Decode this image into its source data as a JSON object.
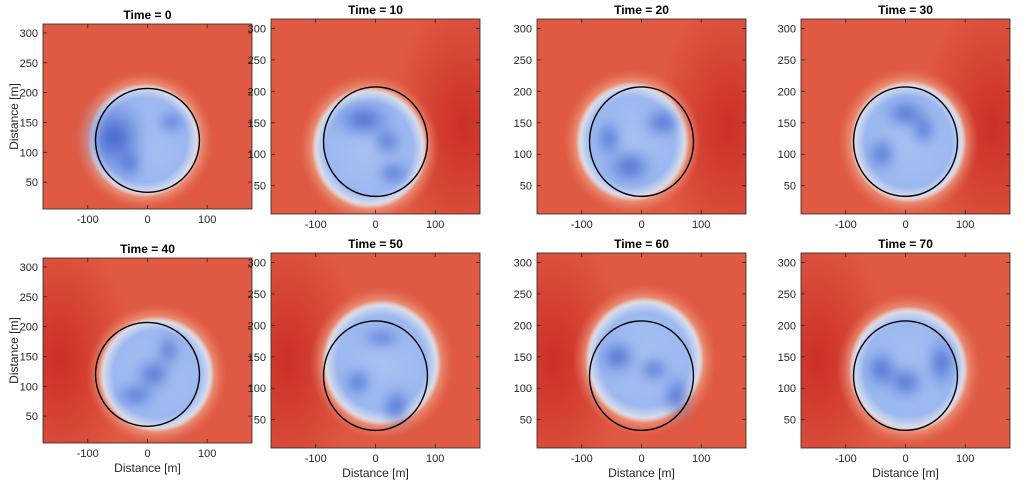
{
  "chart_data": {
    "type": "heatmap",
    "figure_layout": {
      "rows": 2,
      "cols": 4
    },
    "panels": [
      {
        "title": "Time = 0",
        "xlabel": "",
        "ylabel": "Distance [m]",
        "blobs": [
          [
            -55,
            125,
            60,
            70
          ],
          [
            40,
            150,
            28,
            18
          ],
          [
            -30,
            80,
            22,
            30
          ]
        ],
        "blob_center": [
          -5,
          120
        ],
        "blob_radius": 90,
        "hot_side": "none"
      },
      {
        "title": "Time = 10",
        "xlabel": "",
        "ylabel": "",
        "blobs": [
          [
            -20,
            155,
            55,
            30
          ],
          [
            20,
            120,
            25,
            25
          ],
          [
            30,
            70,
            30,
            20
          ]
        ],
        "blob_center": [
          -10,
          110
        ],
        "blob_radius": 92,
        "hot_side": "right"
      },
      {
        "title": "Time = 20",
        "xlabel": "",
        "ylabel": "",
        "blobs": [
          [
            -55,
            125,
            22,
            35
          ],
          [
            -20,
            80,
            45,
            30
          ],
          [
            35,
            150,
            35,
            25
          ]
        ],
        "blob_center": [
          -15,
          120
        ],
        "blob_radius": 90,
        "hot_side": "right"
      },
      {
        "title": "Time = 30",
        "xlabel": "",
        "ylabel": "",
        "blobs": [
          [
            -40,
            100,
            25,
            30
          ],
          [
            30,
            140,
            22,
            30
          ],
          [
            0,
            165,
            40,
            25
          ]
        ],
        "blob_center": [
          5,
          120
        ],
        "blob_radius": 92,
        "hot_side": "right"
      },
      {
        "title": "Time = 40",
        "xlabel": "Distance [m]",
        "ylabel": "Distance [m]",
        "blobs": [
          [
            -20,
            85,
            40,
            20
          ],
          [
            35,
            160,
            20,
            30
          ],
          [
            10,
            120,
            35,
            30
          ]
        ],
        "blob_center": [
          15,
          120
        ],
        "blob_radius": 92,
        "hot_side": "left"
      },
      {
        "title": "Time = 50",
        "xlabel": "Distance [m]",
        "ylabel": "",
        "blobs": [
          [
            35,
            70,
            25,
            35
          ],
          [
            -30,
            110,
            25,
            25
          ],
          [
            10,
            180,
            40,
            15
          ]
        ],
        "blob_center": [
          10,
          140
        ],
        "blob_radius": 95,
        "hot_side": "left"
      },
      {
        "title": "Time = 60",
        "xlabel": "Distance [m]",
        "ylabel": "",
        "blobs": [
          [
            60,
            85,
            25,
            40
          ],
          [
            -40,
            150,
            35,
            30
          ],
          [
            20,
            130,
            30,
            20
          ]
        ],
        "blob_center": [
          5,
          145
        ],
        "blob_radius": 95,
        "hot_side": "left"
      },
      {
        "title": "Time = 70",
        "xlabel": "Distance [m]",
        "ylabel": "",
        "blobs": [
          [
            60,
            140,
            25,
            45
          ],
          [
            -40,
            130,
            30,
            35
          ],
          [
            0,
            110,
            35,
            30
          ]
        ],
        "blob_center": [
          5,
          130
        ],
        "blob_radius": 95,
        "hot_side": "left"
      }
    ],
    "xlim": [
      -175,
      175
    ],
    "ylim": [
      5,
      315
    ],
    "xticks": [
      -100,
      0,
      100
    ],
    "yticks": [
      50,
      100,
      150,
      200,
      250,
      300
    ],
    "circle": {
      "center": [
        0,
        120
      ],
      "radius": 87
    },
    "colormap": {
      "low": "#3a5fcd",
      "mid": "#eadfd8",
      "high": "#c92a24",
      "background": "#e05a43"
    },
    "grid": false,
    "legend": "none"
  }
}
